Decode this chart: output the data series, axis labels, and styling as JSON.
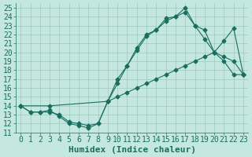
{
  "xlabel": "Humidex (Indice chaleur)",
  "xlim": [
    -0.5,
    23.5
  ],
  "ylim": [
    11,
    25.5
  ],
  "yticks": [
    11,
    12,
    13,
    14,
    15,
    16,
    17,
    18,
    19,
    20,
    21,
    22,
    23,
    24,
    25
  ],
  "xticks": [
    0,
    1,
    2,
    3,
    4,
    5,
    6,
    7,
    8,
    9,
    10,
    11,
    12,
    13,
    14,
    15,
    16,
    17,
    18,
    19,
    20,
    21,
    22,
    23
  ],
  "bg_color": "#c4e8e0",
  "grid_color": "#9cc8be",
  "line_color": "#1a6e60",
  "line1_x": [
    0,
    1,
    2,
    3,
    4,
    5,
    6,
    7,
    8,
    9,
    10,
    11,
    12,
    13,
    14,
    15,
    16,
    17,
    18,
    19,
    20,
    21,
    22,
    23
  ],
  "line1_y": [
    14.0,
    13.3,
    13.3,
    13.5,
    12.8,
    12.0,
    11.8,
    11.5,
    12.0,
    14.5,
    17.0,
    18.5,
    20.5,
    22.0,
    22.5,
    23.5,
    24.0,
    25.0,
    23.0,
    22.5,
    20.0,
    19.5,
    19.0,
    17.5
  ],
  "line2_x": [
    0,
    3,
    9,
    10,
    11,
    12,
    13,
    14,
    15,
    16,
    17,
    18,
    19,
    20,
    21,
    22,
    23
  ],
  "line2_y": [
    14.0,
    14.0,
    14.5,
    15.0,
    15.5,
    16.0,
    16.5,
    17.0,
    17.5,
    18.0,
    18.5,
    19.0,
    19.5,
    20.0,
    21.3,
    22.7,
    17.5
  ],
  "line3_x": [
    0,
    1,
    2,
    3,
    4,
    5,
    6,
    7,
    8,
    9,
    10,
    11,
    12,
    13,
    14,
    15,
    16,
    17,
    18,
    19,
    20,
    21,
    22,
    23
  ],
  "line3_y": [
    14.0,
    13.3,
    13.3,
    13.3,
    13.0,
    12.2,
    12.0,
    11.8,
    12.0,
    14.5,
    16.5,
    18.5,
    20.2,
    21.8,
    22.5,
    23.8,
    24.0,
    24.5,
    23.0,
    21.5,
    20.0,
    19.0,
    17.5,
    17.5
  ],
  "marker_size": 2.5,
  "font_size": 7
}
